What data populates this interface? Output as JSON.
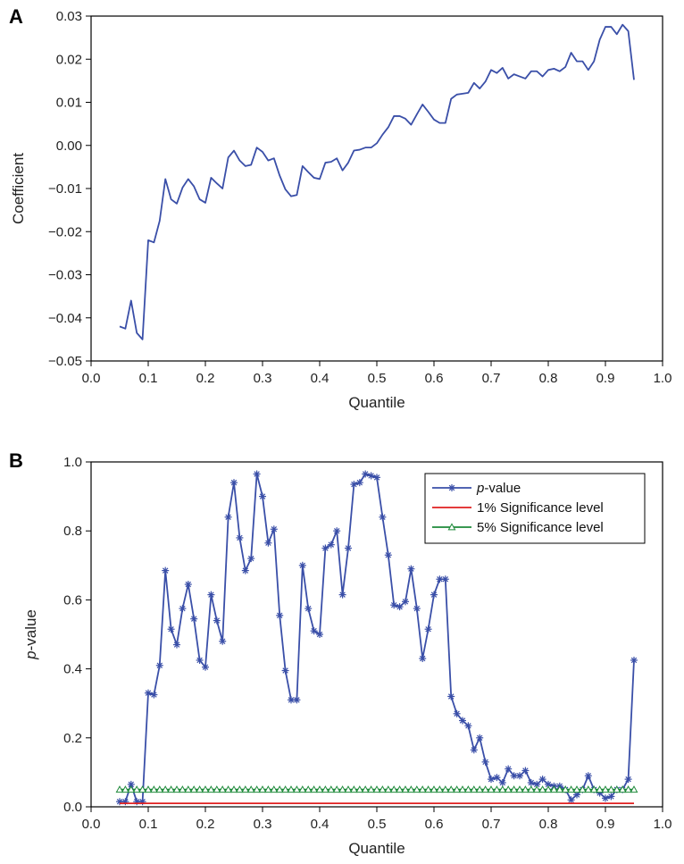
{
  "chart_data": [
    {
      "panel": "A",
      "type": "line",
      "xlabel": "Quantile",
      "ylabel": "Coefficient",
      "xlim": [
        0.0,
        1.0
      ],
      "ylim": [
        -0.05,
        0.03
      ],
      "xticks": [
        "0.0",
        "0.1",
        "0.2",
        "0.3",
        "0.4",
        "0.5",
        "0.6",
        "0.7",
        "0.8",
        "0.9",
        "1.0"
      ],
      "yticks": [
        "−0.05",
        "−0.04",
        "−0.03",
        "−0.02",
        "−0.01",
        "0.00",
        "0.01",
        "0.02",
        "0.03"
      ],
      "grid": false,
      "color": "#3a4fa8",
      "series": [
        {
          "x": [
            0.05,
            0.06,
            0.07,
            0.08,
            0.09,
            0.1,
            0.11,
            0.12,
            0.13,
            0.14,
            0.15,
            0.16,
            0.17,
            0.18,
            0.19,
            0.2,
            0.21,
            0.22,
            0.23,
            0.24,
            0.25,
            0.26,
            0.27,
            0.28,
            0.29,
            0.3,
            0.31,
            0.32,
            0.33,
            0.34,
            0.35,
            0.36,
            0.37,
            0.38,
            0.39,
            0.4,
            0.41,
            0.42,
            0.43,
            0.44,
            0.45,
            0.46,
            0.47,
            0.48,
            0.49,
            0.5,
            0.51,
            0.52,
            0.53,
            0.54,
            0.55,
            0.56,
            0.57,
            0.58,
            0.59,
            0.6,
            0.61,
            0.62,
            0.63,
            0.64,
            0.65,
            0.66,
            0.67,
            0.68,
            0.69,
            0.7,
            0.71,
            0.72,
            0.73,
            0.74,
            0.75,
            0.76,
            0.77,
            0.78,
            0.79,
            0.8,
            0.81,
            0.82,
            0.83,
            0.84,
            0.85,
            0.86,
            0.87,
            0.88,
            0.89,
            0.9,
            0.91,
            0.92,
            0.93,
            0.94,
            0.95
          ],
          "values": [
            -0.042,
            -0.0425,
            -0.036,
            -0.0435,
            -0.045,
            -0.022,
            -0.0225,
            -0.0175,
            -0.0078,
            -0.0125,
            -0.0135,
            -0.0098,
            -0.0078,
            -0.0095,
            -0.0125,
            -0.0133,
            -0.0075,
            -0.0088,
            -0.01,
            -0.0028,
            -0.0012,
            -0.0035,
            -0.0048,
            -0.0045,
            -0.0005,
            -0.0015,
            -0.0035,
            -0.003,
            -0.007,
            -0.0102,
            -0.0118,
            -0.0115,
            -0.0048,
            -0.0062,
            -0.0075,
            -0.0078,
            -0.004,
            -0.0038,
            -0.003,
            -0.0058,
            -0.004,
            -0.0012,
            -0.001,
            -0.0005,
            -0.0005,
            0.0005,
            0.0025,
            0.0042,
            0.0068,
            0.0068,
            0.0062,
            0.0048,
            0.0072,
            0.0095,
            0.0078,
            0.006,
            0.0052,
            0.0052,
            0.0108,
            0.0118,
            0.012,
            0.0122,
            0.0145,
            0.0132,
            0.0148,
            0.0175,
            0.0168,
            0.018,
            0.0155,
            0.0165,
            0.016,
            0.0155,
            0.0172,
            0.0172,
            0.016,
            0.0175,
            0.0178,
            0.0172,
            0.0182,
            0.0215,
            0.0195,
            0.0195,
            0.0175,
            0.0195,
            0.0245,
            0.0275,
            0.0275,
            0.0258,
            0.028,
            0.0265,
            0.0152
          ]
        }
      ]
    },
    {
      "panel": "B",
      "type": "line",
      "xlabel": "Quantile",
      "ylabel_prefix": "p",
      "ylabel_suffix": "-value",
      "xlim": [
        0.0,
        1.0
      ],
      "ylim": [
        0.0,
        1.0
      ],
      "xticks": [
        "0.0",
        "0.1",
        "0.2",
        "0.3",
        "0.4",
        "0.5",
        "0.6",
        "0.7",
        "0.8",
        "0.9",
        "1.0"
      ],
      "yticks": [
        "0.0",
        "0.2",
        "0.4",
        "0.6",
        "0.8",
        "1.0"
      ],
      "grid": false,
      "legend": "top-right",
      "series": [
        {
          "name_prefix": "p",
          "name_suffix": "-value",
          "color": "#3a4fa8",
          "marker": "asterisk",
          "x": [
            0.05,
            0.06,
            0.07,
            0.08,
            0.09,
            0.1,
            0.11,
            0.12,
            0.13,
            0.14,
            0.15,
            0.16,
            0.17,
            0.18,
            0.19,
            0.2,
            0.21,
            0.22,
            0.23,
            0.24,
            0.25,
            0.26,
            0.27,
            0.28,
            0.29,
            0.3,
            0.31,
            0.32,
            0.33,
            0.34,
            0.35,
            0.36,
            0.37,
            0.38,
            0.39,
            0.4,
            0.41,
            0.42,
            0.43,
            0.44,
            0.45,
            0.46,
            0.47,
            0.48,
            0.49,
            0.5,
            0.51,
            0.52,
            0.53,
            0.54,
            0.55,
            0.56,
            0.57,
            0.58,
            0.59,
            0.6,
            0.61,
            0.62,
            0.63,
            0.64,
            0.65,
            0.66,
            0.67,
            0.68,
            0.69,
            0.7,
            0.71,
            0.72,
            0.73,
            0.74,
            0.75,
            0.76,
            0.77,
            0.78,
            0.79,
            0.8,
            0.81,
            0.82,
            0.83,
            0.84,
            0.85,
            0.86,
            0.87,
            0.88,
            0.89,
            0.9,
            0.91,
            0.92,
            0.93,
            0.94,
            0.95
          ],
          "values": [
            0.015,
            0.015,
            0.065,
            0.015,
            0.015,
            0.33,
            0.325,
            0.41,
            0.685,
            0.515,
            0.47,
            0.575,
            0.645,
            0.545,
            0.425,
            0.405,
            0.615,
            0.54,
            0.48,
            0.84,
            0.94,
            0.78,
            0.685,
            0.72,
            0.965,
            0.9,
            0.765,
            0.805,
            0.555,
            0.395,
            0.31,
            0.31,
            0.7,
            0.575,
            0.51,
            0.5,
            0.75,
            0.76,
            0.8,
            0.615,
            0.75,
            0.935,
            0.94,
            0.965,
            0.96,
            0.955,
            0.84,
            0.73,
            0.585,
            0.58,
            0.595,
            0.69,
            0.575,
            0.43,
            0.515,
            0.615,
            0.66,
            0.66,
            0.32,
            0.27,
            0.25,
            0.235,
            0.165,
            0.2,
            0.13,
            0.08,
            0.085,
            0.07,
            0.11,
            0.09,
            0.09,
            0.105,
            0.07,
            0.065,
            0.08,
            0.065,
            0.06,
            0.06,
            0.05,
            0.02,
            0.035,
            0.05,
            0.09,
            0.05,
            0.04,
            0.025,
            0.03,
            0.05,
            0.05,
            0.08,
            0.425
          ]
        },
        {
          "name": "1% Significance level",
          "color": "#e02020",
          "marker": "none",
          "x": [
            0.05,
            0.95
          ],
          "values": [
            0.01,
            0.01
          ]
        },
        {
          "name": "5% Significance level",
          "color": "#1e8a3a",
          "marker": "triangle",
          "x": [
            0.05,
            0.06,
            0.07,
            0.08,
            0.09,
            0.1,
            0.11,
            0.12,
            0.13,
            0.14,
            0.15,
            0.16,
            0.17,
            0.18,
            0.19,
            0.2,
            0.21,
            0.22,
            0.23,
            0.24,
            0.25,
            0.26,
            0.27,
            0.28,
            0.29,
            0.3,
            0.31,
            0.32,
            0.33,
            0.34,
            0.35,
            0.36,
            0.37,
            0.38,
            0.39,
            0.4,
            0.41,
            0.42,
            0.43,
            0.44,
            0.45,
            0.46,
            0.47,
            0.48,
            0.49,
            0.5,
            0.51,
            0.52,
            0.53,
            0.54,
            0.55,
            0.56,
            0.57,
            0.58,
            0.59,
            0.6,
            0.61,
            0.62,
            0.63,
            0.64,
            0.65,
            0.66,
            0.67,
            0.68,
            0.69,
            0.7,
            0.71,
            0.72,
            0.73,
            0.74,
            0.75,
            0.76,
            0.77,
            0.78,
            0.79,
            0.8,
            0.81,
            0.82,
            0.83,
            0.84,
            0.85,
            0.86,
            0.87,
            0.88,
            0.89,
            0.9,
            0.91,
            0.92,
            0.93,
            0.94,
            0.95
          ],
          "values": [
            0.05,
            0.05,
            0.05,
            0.05,
            0.05,
            0.05,
            0.05,
            0.05,
            0.05,
            0.05,
            0.05,
            0.05,
            0.05,
            0.05,
            0.05,
            0.05,
            0.05,
            0.05,
            0.05,
            0.05,
            0.05,
            0.05,
            0.05,
            0.05,
            0.05,
            0.05,
            0.05,
            0.05,
            0.05,
            0.05,
            0.05,
            0.05,
            0.05,
            0.05,
            0.05,
            0.05,
            0.05,
            0.05,
            0.05,
            0.05,
            0.05,
            0.05,
            0.05,
            0.05,
            0.05,
            0.05,
            0.05,
            0.05,
            0.05,
            0.05,
            0.05,
            0.05,
            0.05,
            0.05,
            0.05,
            0.05,
            0.05,
            0.05,
            0.05,
            0.05,
            0.05,
            0.05,
            0.05,
            0.05,
            0.05,
            0.05,
            0.05,
            0.05,
            0.05,
            0.05,
            0.05,
            0.05,
            0.05,
            0.05,
            0.05,
            0.05,
            0.05,
            0.05,
            0.05,
            0.05,
            0.05,
            0.05,
            0.05,
            0.05,
            0.05,
            0.05,
            0.05,
            0.05,
            0.05,
            0.05,
            0.05
          ]
        }
      ]
    }
  ]
}
